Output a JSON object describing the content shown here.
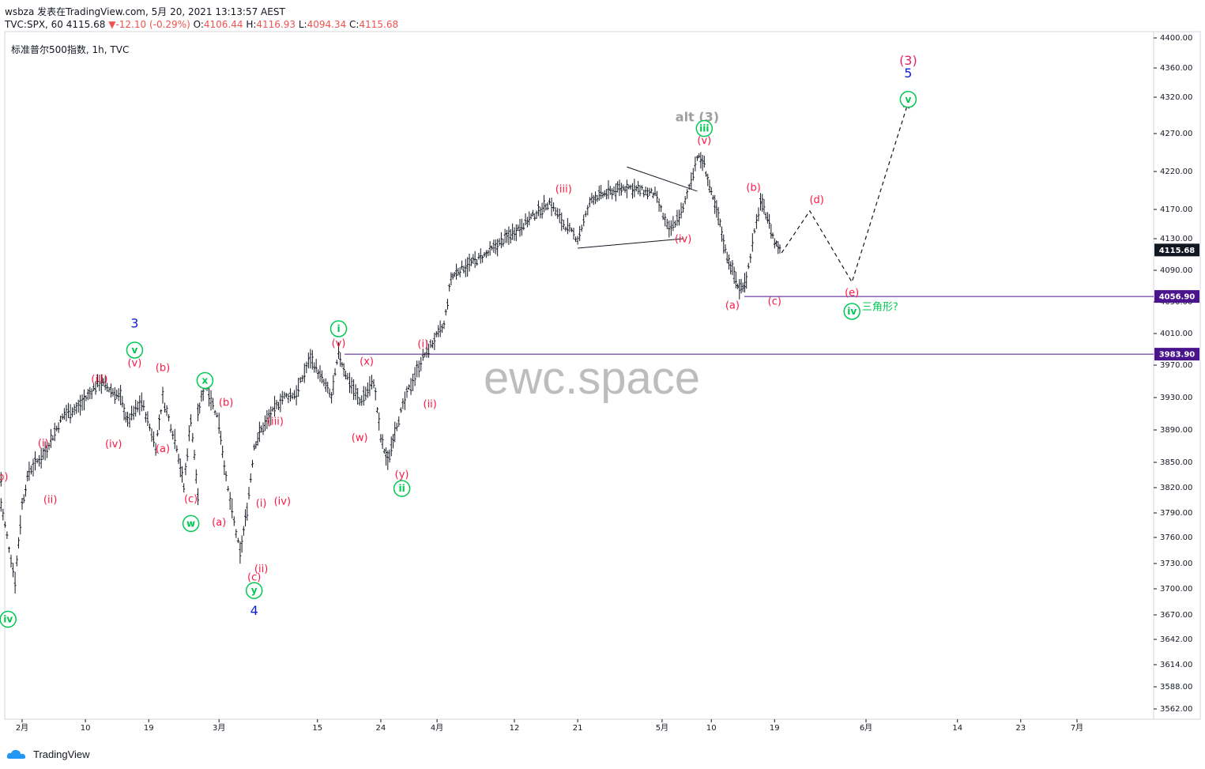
{
  "header": {
    "line1": "wsbza 发表在TradingView.com, 5月 20, 2021 13:13:57 AEST",
    "symbol": "TVC:SPX, 60",
    "last": "4115.68",
    "change_arrow": "▼",
    "change": "-12.10 (-0.29%)",
    "o_label": "O:",
    "o_value": "4106.44",
    "h_label": "H:",
    "h_value": "4116.93",
    "l_label": "L:",
    "l_value": "4094.34",
    "c_label": "C:",
    "c_value": "4115.68"
  },
  "legend_label": "标准普尔500指数, 1h, TVC",
  "watermark": "ewc.space",
  "branding": "TradingView",
  "colors": {
    "candle": "#131722",
    "red_label": "#ff1744",
    "green_label": "#00c853",
    "blue_label": "#0d1fd6",
    "magenta_label": "#e91e63",
    "grey_label": "#9e9e9e",
    "hline": "#4a148c",
    "axis_bg": "#131722"
  },
  "chart_data": {
    "type": "line",
    "title": "标准普尔500指数, 1h, TVC",
    "ylim": [
      3550,
      4405
    ],
    "x_ticks": [
      "2月",
      "10",
      "19",
      "3月",
      "15",
      "24",
      "4月",
      "12",
      "21",
      "5月",
      "10",
      "19",
      "6月",
      "14",
      "23",
      "7月"
    ],
    "y_ticks": [
      "4400.00",
      "4360.00",
      "4320.00",
      "4270.00",
      "4220.00",
      "4170.00",
      "4130.00",
      "4090.00",
      "4050.00",
      "4010.00",
      "3970.00",
      "3930.00",
      "3890.00",
      "3850.00",
      "3820.00",
      "3790.00",
      "3760.00",
      "3730.00",
      "3700.00",
      "3670.00",
      "3642.00",
      "3614.00",
      "3588.00",
      "3562.00"
    ],
    "price_labels": [
      {
        "value": 4115.68,
        "text": "4115.68"
      },
      {
        "value": 4056.9,
        "text": "4056.90"
      },
      {
        "value": 3983.9,
        "text": "3983.90"
      }
    ],
    "horizontal_levels": [
      4056.9,
      3983.9
    ],
    "series": [
      {
        "x": [
          "2021-01-29",
          "2021-01-29",
          "2021-01-31",
          "2021-02-01",
          "2021-02-02",
          "2021-02-04",
          "2021-02-07",
          "2021-02-09",
          "2021-02-12",
          "2021-02-15",
          "2021-02-16",
          "2021-02-18",
          "2021-02-20",
          "2021-02-21",
          "2021-02-23",
          "2021-02-24",
          "2021-02-25",
          "2021-02-26",
          "2021-02-26",
          "2021-02-27",
          "2021-03-01",
          "2021-03-02",
          "2021-03-04",
          "2021-03-05",
          "2021-03-06",
          "2021-03-07",
          "2021-03-10",
          "2021-03-12",
          "2021-03-14",
          "2021-03-17",
          "2021-03-18",
          "2021-03-19",
          "2021-03-21",
          "2021-03-23",
          "2021-03-24",
          "2021-03-25",
          "2021-03-26",
          "2021-03-28",
          "2021-03-30",
          "2021-04-02",
          "2021-04-03",
          "2021-04-04",
          "2021-04-08",
          "2021-04-12",
          "2021-04-17",
          "2021-04-19",
          "2021-04-21",
          "2021-04-23",
          "2021-04-28",
          "2021-05-02",
          "2021-05-04",
          "2021-05-06",
          "2021-05-08",
          "2021-05-09",
          "2021-05-10",
          "2021-05-11",
          "2021-05-12",
          "2021-05-13",
          "2021-05-14",
          "2021-05-15",
          "2021-05-17",
          "2021-05-18",
          "2021-05-19",
          "2021-05-20"
        ],
        "values": [
          3830,
          3800,
          3710,
          3800,
          3840,
          3860,
          3910,
          3918,
          3950,
          3930,
          3900,
          3925,
          3870,
          3930,
          3870,
          3820,
          3905,
          3810,
          3908,
          3950,
          3900,
          3830,
          3740,
          3795,
          3870,
          3890,
          3930,
          3935,
          3980,
          3930,
          3985,
          3960,
          3925,
          3950,
          3880,
          3850,
          3890,
          3940,
          3980,
          4020,
          4080,
          4090,
          4110,
          4140,
          4180,
          4150,
          4130,
          4185,
          4200,
          4190,
          4140,
          4170,
          4240,
          4230,
          4190,
          4160,
          4115,
          4090,
          4065,
          4080,
          4180,
          4160,
          4125,
          4115.68
        ]
      }
    ],
    "projection": {
      "x": [
        "2021-05-20",
        "2021-05-24",
        "2021-05-30",
        "2021-06-07"
      ],
      "values": [
        4112,
        4168,
        4075,
        4313
      ]
    },
    "triangle_lines": [
      {
        "x": [
          "2021-04-21",
          "2021-05-06"
        ],
        "values": [
          4118,
          4130
        ]
      },
      {
        "x": [
          "2021-04-28",
          "2021-05-08"
        ],
        "values": [
          4226,
          4194
        ]
      }
    ],
    "wave_labels": [
      {
        "text": "(b)",
        "x": "2021-01-29",
        "y": 3832,
        "color": "red"
      },
      {
        "text": "(i)",
        "x": "2021-02-04",
        "y": 3873,
        "color": "red"
      },
      {
        "text": "(ii)",
        "x": "2021-02-05",
        "y": 3805,
        "color": "red"
      },
      {
        "text": "(iii)",
        "x": "2021-02-12",
        "y": 3952,
        "color": "red"
      },
      {
        "text": "(iv)",
        "x": "2021-02-14",
        "y": 3872,
        "color": "red"
      },
      {
        "text": "(v)",
        "x": "2021-02-17",
        "y": 3972,
        "color": "red"
      },
      {
        "text": "3",
        "x": "2021-02-17",
        "y": 4022,
        "color": "blue"
      },
      {
        "text": "(b)",
        "x": "2021-02-21",
        "y": 3966,
        "color": "red"
      },
      {
        "text": "(a)",
        "x": "2021-02-21",
        "y": 3866,
        "color": "red"
      },
      {
        "text": "(c)",
        "x": "2021-02-25",
        "y": 3806,
        "color": "red"
      },
      {
        "text": "(b)",
        "x": "2021-03-02",
        "y": 3923,
        "color": "red"
      },
      {
        "text": "(a)",
        "x": "2021-03-01",
        "y": 3778,
        "color": "red"
      },
      {
        "text": "(iii)",
        "x": "2021-03-09",
        "y": 3900,
        "color": "red"
      },
      {
        "text": "(i)",
        "x": "2021-03-07",
        "y": 3801,
        "color": "red"
      },
      {
        "text": "(iv)",
        "x": "2021-03-10",
        "y": 3803,
        "color": "red"
      },
      {
        "text": "(ii)",
        "x": "2021-03-07",
        "y": 3723,
        "color": "red"
      },
      {
        "text": "(c)",
        "x": "2021-03-06",
        "y": 3713,
        "color": "red"
      },
      {
        "text": "4",
        "x": "2021-03-06",
        "y": 3674,
        "color": "blue"
      },
      {
        "text": "(v)",
        "x": "2021-03-18",
        "y": 3997,
        "color": "red"
      },
      {
        "text": "(x)",
        "x": "2021-03-22",
        "y": 3974,
        "color": "red"
      },
      {
        "text": "(w)",
        "x": "2021-03-21",
        "y": 3880,
        "color": "red"
      },
      {
        "text": "(i)",
        "x": "2021-03-30",
        "y": 3996,
        "color": "red"
      },
      {
        "text": "(ii)",
        "x": "2021-03-31",
        "y": 3921,
        "color": "red"
      },
      {
        "text": "(y)",
        "x": "2021-03-27",
        "y": 3835,
        "color": "red"
      },
      {
        "text": "(iii)",
        "x": "2021-04-19",
        "y": 4196,
        "color": "red"
      },
      {
        "text": "(iv)",
        "x": "2021-05-06",
        "y": 4129,
        "color": "red"
      },
      {
        "text": "(v)",
        "x": "2021-05-09",
        "y": 4260,
        "color": "red"
      },
      {
        "text": "alt (3)",
        "x": "2021-05-08",
        "y": 4292,
        "color": "grey"
      },
      {
        "text": "(b)",
        "x": "2021-05-16",
        "y": 4198,
        "color": "red"
      },
      {
        "text": "(d)",
        "x": "2021-05-25",
        "y": 4182,
        "color": "red"
      },
      {
        "text": "(a)",
        "x": "2021-05-13",
        "y": 4045,
        "color": "red"
      },
      {
        "text": "(c)",
        "x": "2021-05-19",
        "y": 4050,
        "color": "red"
      },
      {
        "text": "(e)",
        "x": "2021-05-30",
        "y": 4061,
        "color": "red"
      },
      {
        "text": "三角形?",
        "x": "2021-06-03",
        "y": 4043,
        "color": "green"
      },
      {
        "text": "(3)",
        "x": "2021-06-07",
        "y": 4369,
        "color": "magenta"
      },
      {
        "text": "5",
        "x": "2021-06-07",
        "y": 4352,
        "color": "blue"
      }
    ],
    "circled_labels": [
      {
        "text": "iv",
        "x": "2021-01-30",
        "y": 3665
      },
      {
        "text": "v",
        "x": "2021-02-17",
        "y": 3989
      },
      {
        "text": "x",
        "x": "2021-02-27",
        "y": 3951
      },
      {
        "text": "w",
        "x": "2021-02-25",
        "y": 3777
      },
      {
        "text": "y",
        "x": "2021-03-06",
        "y": 3698
      },
      {
        "text": "i",
        "x": "2021-03-18",
        "y": 4016
      },
      {
        "text": "ii",
        "x": "2021-03-27",
        "y": 3819
      },
      {
        "text": "iii",
        "x": "2021-05-09",
        "y": 4277
      },
      {
        "text": "iv",
        "x": "2021-05-30",
        "y": 4038
      },
      {
        "text": "v",
        "x": "2021-06-07",
        "y": 4317
      }
    ]
  }
}
